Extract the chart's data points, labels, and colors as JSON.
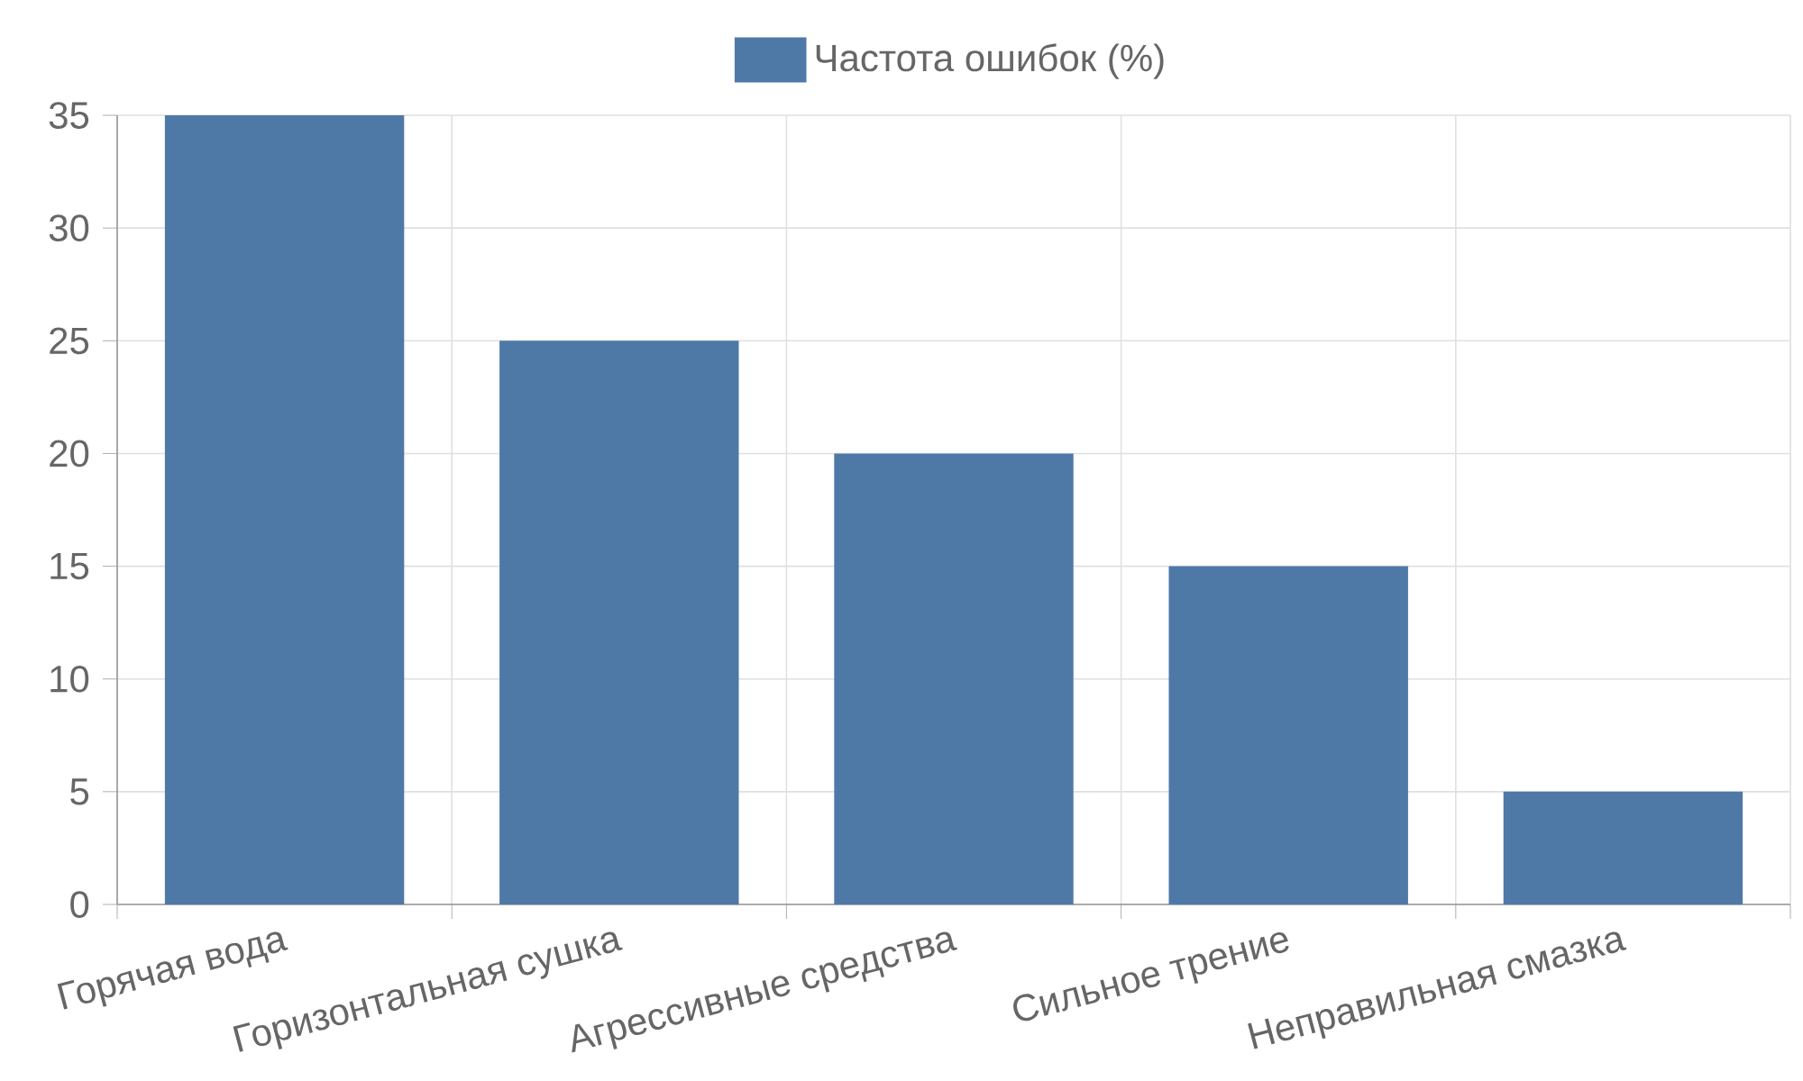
{
  "chart_data": {
    "type": "bar",
    "categories": [
      "Горячая вода",
      "Горизонтальная сушка",
      "Агрессивные средства",
      "Сильное трение",
      "Неправильная смазка"
    ],
    "series": [
      {
        "name": "Частота ошибок (%)",
        "color": "#4e79a7",
        "values": [
          35,
          25,
          20,
          15,
          5
        ]
      }
    ],
    "ylim": [
      0,
      35
    ],
    "yticks": [
      0,
      5,
      10,
      15,
      20,
      25,
      30,
      35
    ],
    "grid": true,
    "legend": "top"
  }
}
